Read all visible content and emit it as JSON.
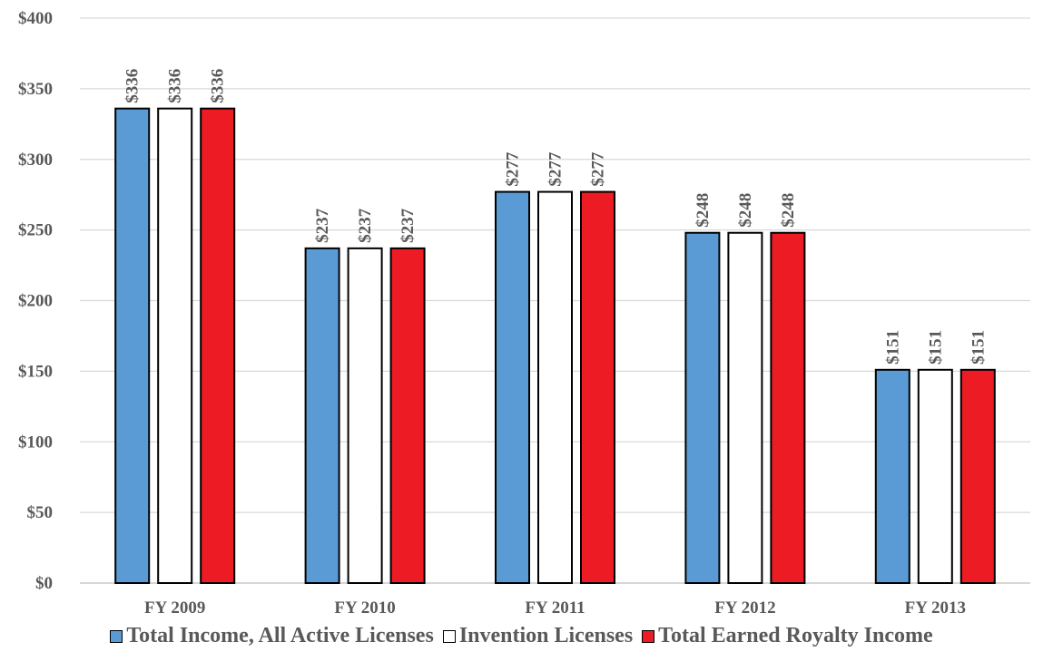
{
  "chart_data": {
    "type": "bar",
    "categories": [
      "FY 2009",
      "FY 2010",
      "FY 2011",
      "FY 2012",
      "FY 2013"
    ],
    "series": [
      {
        "name": "Total Income, All Active Licenses",
        "values": [
          336,
          237,
          277,
          248,
          151
        ],
        "color": "#5B9BD5"
      },
      {
        "name": "Invention Licenses",
        "values": [
          336,
          237,
          277,
          248,
          151
        ],
        "color": "#FFFFFF"
      },
      {
        "name": "Total Earned Royalty Income",
        "values": [
          336,
          237,
          277,
          248,
          151
        ],
        "color": "#ED1C24"
      }
    ],
    "data_labels": [
      [
        "$336",
        "$237",
        "$277",
        "$248",
        "$151"
      ],
      [
        "$336",
        "$237",
        "$277",
        "$248",
        "$151"
      ],
      [
        "$336",
        "$237",
        "$277",
        "$248",
        "$151"
      ]
    ],
    "y_ticks": [
      "$0",
      "$50",
      "$100",
      "$150",
      "$200",
      "$250",
      "$300",
      "$350",
      "$400"
    ],
    "ylim": [
      0,
      400
    ],
    "grid": true,
    "legend_position": "bottom"
  }
}
